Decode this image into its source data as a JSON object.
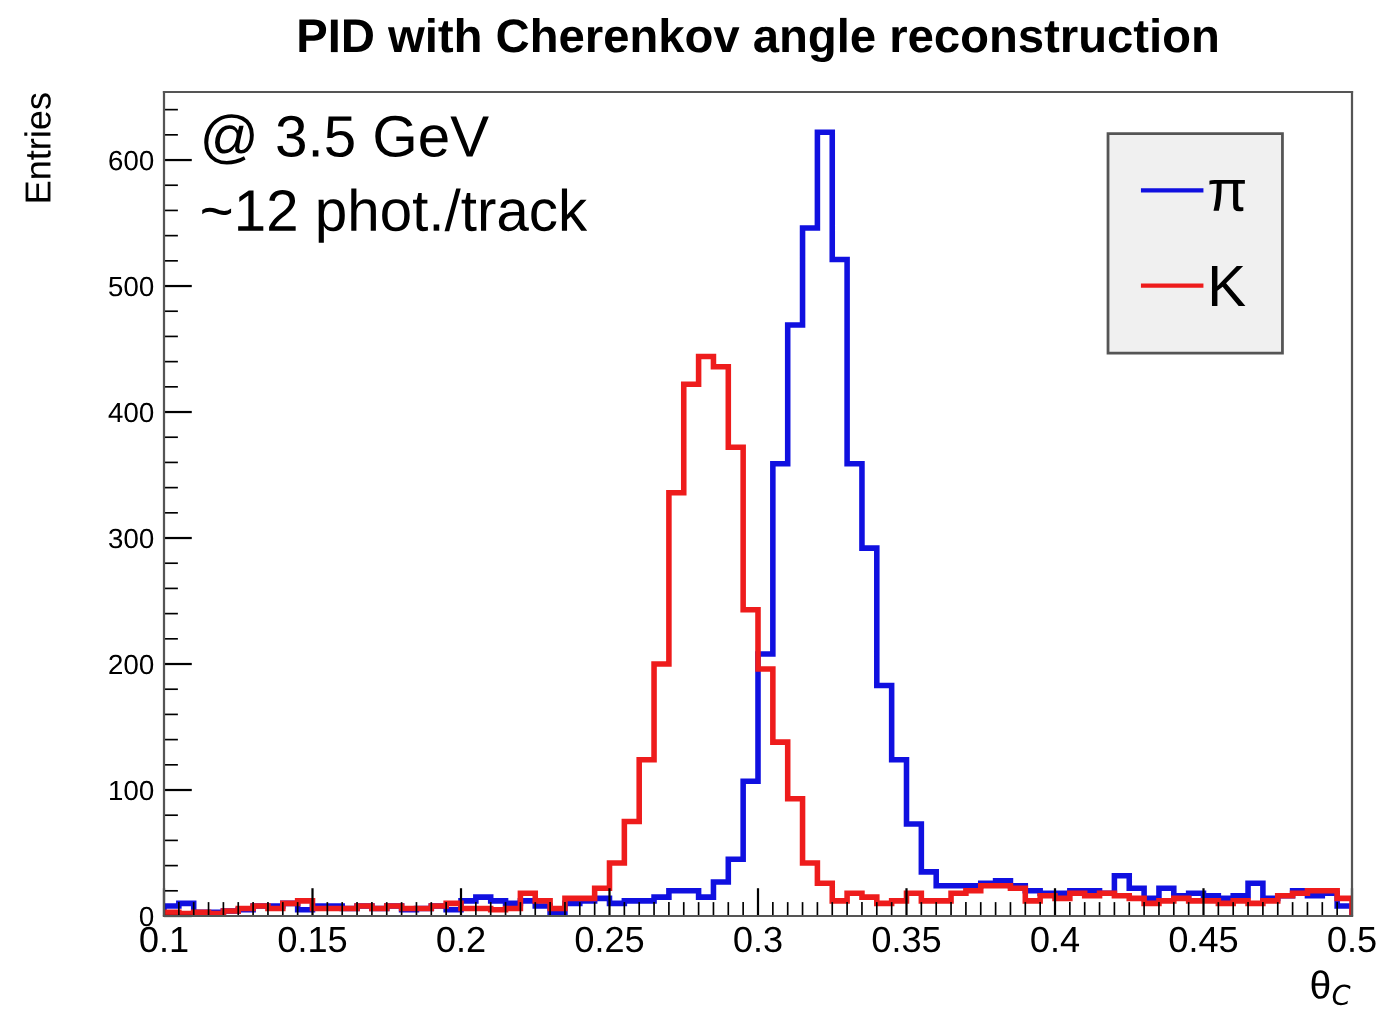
{
  "chart_data": {
    "type": "histogram",
    "title": "PID with Cherenkov angle reconstruction",
    "xlabel": "θ$_{C}$",
    "ylabel": "Entries",
    "annotations": [
      "@ 3.5 GeV",
      "~12 phot./track"
    ],
    "bins": [
      0.1,
      0.105,
      0.11,
      0.115,
      0.12,
      0.125,
      0.13,
      0.135,
      0.14,
      0.145,
      0.15,
      0.155,
      0.16,
      0.165,
      0.17,
      0.175,
      0.18,
      0.185,
      0.19,
      0.195,
      0.2,
      0.205,
      0.21,
      0.215,
      0.22,
      0.225,
      0.23,
      0.235,
      0.24,
      0.245,
      0.25,
      0.255,
      0.26,
      0.265,
      0.27,
      0.275,
      0.28,
      0.285,
      0.29,
      0.295,
      0.3,
      0.305,
      0.31,
      0.315,
      0.32,
      0.325,
      0.33,
      0.335,
      0.34,
      0.345,
      0.35,
      0.355,
      0.36,
      0.365,
      0.37,
      0.375,
      0.38,
      0.385,
      0.39,
      0.395,
      0.4,
      0.405,
      0.41,
      0.415,
      0.42,
      0.425,
      0.43,
      0.435,
      0.44,
      0.445,
      0.45,
      0.455,
      0.46,
      0.465,
      0.47,
      0.475,
      0.48,
      0.485,
      0.49,
      0.495,
      0.5
    ],
    "series": [
      {
        "name": "π",
        "color": "#1010e0",
        "values": [
          8,
          10,
          3,
          3,
          4,
          5,
          8,
          8,
          10,
          5,
          8,
          8,
          6,
          8,
          6,
          8,
          5,
          6,
          8,
          5,
          12,
          15,
          12,
          10,
          12,
          8,
          3,
          10,
          12,
          14,
          10,
          12,
          12,
          15,
          20,
          20,
          15,
          27,
          45,
          107,
          208,
          359,
          469,
          546,
          622,
          521,
          359,
          292,
          183,
          124,
          73,
          35,
          24,
          24,
          24,
          26,
          28,
          24,
          20,
          18,
          18,
          20,
          20,
          18,
          32,
          22,
          14,
          22,
          16,
          18,
          16,
          14,
          16,
          26,
          14,
          16,
          20,
          16,
          18,
          8
        ]
      },
      {
        "name": "K",
        "color": "#ee1c1c",
        "values": [
          3,
          2,
          3,
          2,
          4,
          6,
          8,
          6,
          10,
          12,
          6,
          6,
          6,
          8,
          6,
          8,
          6,
          6,
          8,
          10,
          6,
          6,
          5,
          6,
          18,
          12,
          6,
          14,
          14,
          22,
          42,
          75,
          124,
          200,
          336,
          422,
          444,
          436,
          372,
          243,
          196,
          138,
          93,
          42,
          26,
          12,
          18,
          15,
          10,
          12,
          18,
          12,
          12,
          18,
          20,
          24,
          24,
          22,
          12,
          16,
          14,
          18,
          16,
          18,
          16,
          14,
          10,
          12,
          14,
          12,
          12,
          10,
          12,
          10,
          12,
          16,
          18,
          20,
          20,
          14
        ]
      }
    ],
    "xlim": [
      0.1,
      0.5
    ],
    "ylim": [
      0,
      654
    ],
    "xticks": [
      0.1,
      0.15,
      0.2,
      0.25,
      0.3,
      0.35,
      0.4,
      0.45,
      0.5
    ],
    "yticks": [
      0,
      100,
      200,
      300,
      400,
      500,
      600
    ],
    "grid": false,
    "legend": "top right"
  }
}
